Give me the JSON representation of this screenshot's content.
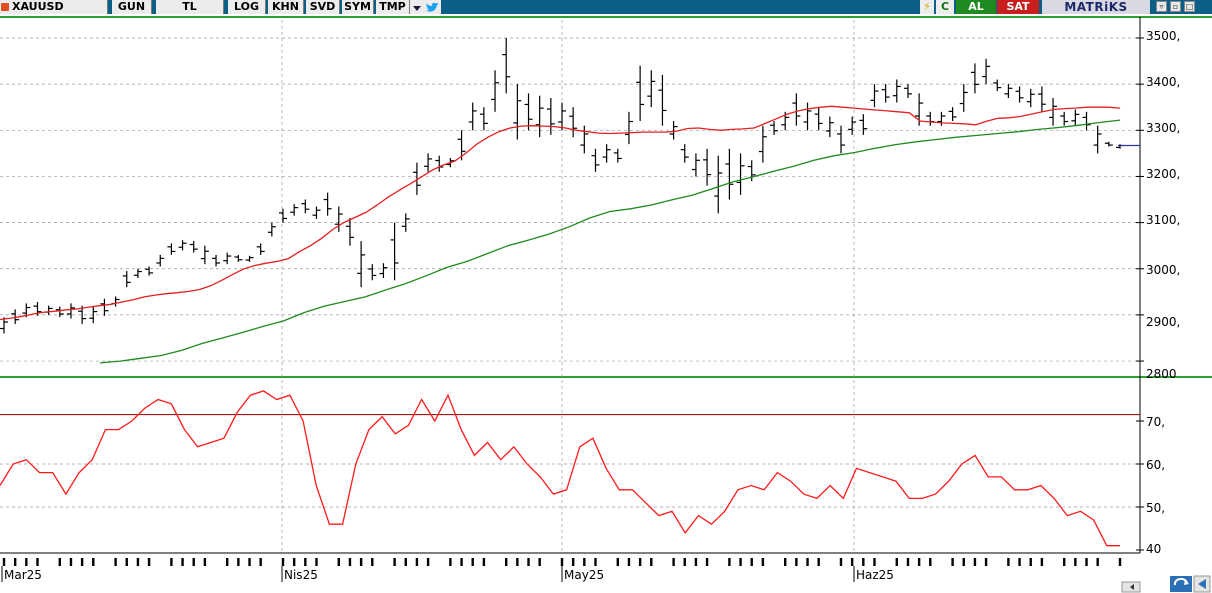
{
  "toolbar": {
    "symbol": "XAUUSD",
    "period": "GUN",
    "currency": "TL",
    "buttons": [
      "LOG",
      "KHN",
      "SVD",
      "SYM",
      "TMP"
    ],
    "refresh_label": "C",
    "buy_label": "AL",
    "sell_label": "SAT",
    "brand": "MATRiKS",
    "icons": [
      "dropdown-arrow-icon",
      "twitter-bird-icon",
      "lightning-icon",
      "minimize-icon",
      "restore-icon",
      "maximize-icon",
      "refresh-icon",
      "scroll-left-icon"
    ],
    "colors": {
      "bar": "#0b5f86",
      "buy": "#1f8a1f",
      "sell": "#c81e1e"
    }
  },
  "chart_data": [
    {
      "type": "ohlc",
      "series": [
        {
          "values": [
            [
              2860,
              2895
            ],
            [
              2880,
              2912
            ],
            [
              2895,
              2925
            ],
            [
              2898,
              2928
            ],
            [
              2900,
              2920
            ],
            [
              2895,
              2918
            ],
            [
              2892,
              2925
            ],
            [
              2880,
              2920
            ],
            [
              2882,
              2918
            ],
            [
              2898,
              2935
            ],
            [
              2918,
              2940
            ],
            [
              2960,
              2995
            ],
            [
              2980,
              3000
            ],
            [
              2985,
              3005
            ],
            [
              3005,
              3030
            ],
            [
              3030,
              3055
            ],
            [
              3040,
              3062
            ],
            [
              3035,
              3060
            ],
            [
              3010,
              3050
            ],
            [
              3005,
              3030
            ],
            [
              3010,
              3035
            ],
            [
              3015,
              3030
            ],
            [
              3015,
              3028
            ],
            [
              3030,
              3055
            ],
            [
              3070,
              3100
            ],
            [
              3100,
              3130
            ],
            [
              3115,
              3140
            ],
            [
              3120,
              3150
            ],
            [
              3108,
              3135
            ],
            [
              3115,
              3165
            ],
            [
              3080,
              3135
            ],
            [
              3050,
              3110
            ],
            [
              2960,
              3060
            ],
            [
              2975,
              3010
            ],
            [
              2980,
              3012
            ],
            [
              2975,
              3100
            ],
            [
              3080,
              3120
            ],
            [
              3160,
              3230
            ],
            [
              3210,
              3250
            ],
            [
              3210,
              3245
            ],
            [
              3220,
              3240
            ],
            [
              3235,
              3300
            ],
            [
              3300,
              3360
            ],
            [
              3300,
              3350
            ],
            [
              3340,
              3430
            ],
            [
              3380,
              3500
            ],
            [
              3280,
              3400
            ],
            [
              3300,
              3380
            ],
            [
              3285,
              3375
            ],
            [
              3290,
              3370
            ],
            [
              3300,
              3360
            ],
            [
              3285,
              3350
            ],
            [
              3250,
              3310
            ],
            [
              3210,
              3260
            ],
            [
              3230,
              3270
            ],
            [
              3230,
              3260
            ],
            [
              3270,
              3340
            ],
            [
              3320,
              3440
            ],
            [
              3350,
              3430
            ],
            [
              3310,
              3420
            ],
            [
              3280,
              3320
            ],
            [
              3230,
              3270
            ],
            [
              3200,
              3250
            ],
            [
              3180,
              3260
            ],
            [
              3120,
              3245
            ],
            [
              3150,
              3260
            ],
            [
              3160,
              3250
            ],
            [
              3190,
              3235
            ],
            [
              3230,
              3310
            ],
            [
              3290,
              3320
            ],
            [
              3300,
              3340
            ],
            [
              3310,
              3380
            ],
            [
              3300,
              3360
            ],
            [
              3300,
              3350
            ],
            [
              3285,
              3330
            ],
            [
              3250,
              3310
            ],
            [
              3290,
              3330
            ],
            [
              3290,
              3335
            ],
            [
              3350,
              3400
            ],
            [
              3360,
              3400
            ],
            [
              3360,
              3410
            ],
            [
              3370,
              3400
            ],
            [
              3310,
              3380
            ],
            [
              3310,
              3340
            ],
            [
              3310,
              3340
            ],
            [
              3320,
              3350
            ],
            [
              3340,
              3400
            ],
            [
              3380,
              3445
            ],
            [
              3400,
              3455
            ],
            [
              3385,
              3410
            ],
            [
              3370,
              3400
            ],
            [
              3360,
              3395
            ],
            [
              3350,
              3390
            ],
            [
              3340,
              3395
            ],
            [
              3310,
              3370
            ],
            [
              3310,
              3340
            ],
            [
              3310,
              3345
            ],
            [
              3300,
              3340
            ],
            [
              3250,
              3310
            ],
            [
              3265,
              3275
            ],
            [
              3260,
              3270
            ]
          ]
        },
        {
          "values": [
            2890,
            2893,
            2897,
            2902,
            2906,
            2908,
            2911,
            2913,
            2917,
            2920,
            2923,
            2928,
            2933,
            2939,
            2943,
            2946,
            2948,
            2951,
            2955,
            2963,
            2975,
            2988,
            3000,
            3007,
            3012,
            3016,
            3022,
            3037,
            3050,
            3066,
            3085,
            3100,
            3111,
            3122,
            3138,
            3155,
            3170,
            3184,
            3199,
            3214,
            3225,
            3233,
            3250,
            3270,
            3285,
            3297,
            3305,
            3309,
            3310,
            3309,
            3308,
            3305,
            3300,
            3297,
            3294,
            3293,
            3294,
            3295,
            3296,
            3296,
            3296,
            3298,
            3304,
            3305,
            3302,
            3300,
            3302,
            3303,
            3305,
            3315,
            3325,
            3335,
            3342,
            3347,
            3350,
            3352,
            3350,
            3348,
            3346,
            3344,
            3342,
            3340,
            3338,
            3320,
            3318,
            3316,
            3315,
            3314,
            3312,
            3320,
            3326,
            3327,
            3330,
            3335,
            3340,
            3345,
            3347,
            3348,
            3350,
            3350,
            3350,
            3348
          ]
        },
        {
          "values": [
            2796,
            2800,
            2806,
            2812,
            2823,
            2838,
            2850,
            2862,
            2875,
            2887,
            2905,
            2919,
            2929,
            2939,
            2954,
            2968,
            2985,
            3003,
            3016,
            3033,
            3050,
            3062,
            3075,
            3091,
            3110,
            3124,
            3130,
            3138,
            3149,
            3159,
            3173,
            3188,
            3199,
            3211,
            3222,
            3235,
            3245,
            3252,
            3261,
            3269,
            3275,
            3280,
            3285,
            3289,
            3293,
            3297,
            3302,
            3306,
            3311,
            3317,
            3322
          ]
        }
      ],
      "y_ticks": [
        "3500,",
        "3400,",
        "3300,",
        "3200,",
        "3100,",
        "3000,",
        "2900,",
        "2800"
      ]
    },
    {
      "type": "line",
      "values": [
        55,
        60,
        61,
        58,
        58,
        53,
        58,
        61,
        68,
        68,
        70,
        73,
        75,
        74,
        68,
        64,
        65,
        66,
        72,
        76,
        77,
        75,
        76,
        70,
        55,
        46,
        46,
        60,
        68,
        71,
        67,
        69,
        75,
        70,
        76,
        68,
        62,
        65,
        61,
        64,
        60,
        57,
        53,
        54,
        64,
        66,
        59,
        54,
        54,
        51,
        48,
        49,
        44,
        48,
        46,
        49,
        54,
        55,
        54,
        58,
        56,
        53,
        52,
        55,
        52,
        59,
        58,
        57,
        56,
        52,
        52,
        53,
        56,
        60,
        62,
        57,
        57,
        54,
        54,
        55,
        52,
        48,
        49,
        47,
        41,
        41
      ],
      "ref_line": 71.5,
      "y_ticks": [
        "70,",
        "60,",
        "50,",
        "40"
      ]
    }
  ],
  "x_axis": {
    "labels": [
      "Mar25",
      "Nis25",
      "May25",
      "Haz25"
    ]
  }
}
